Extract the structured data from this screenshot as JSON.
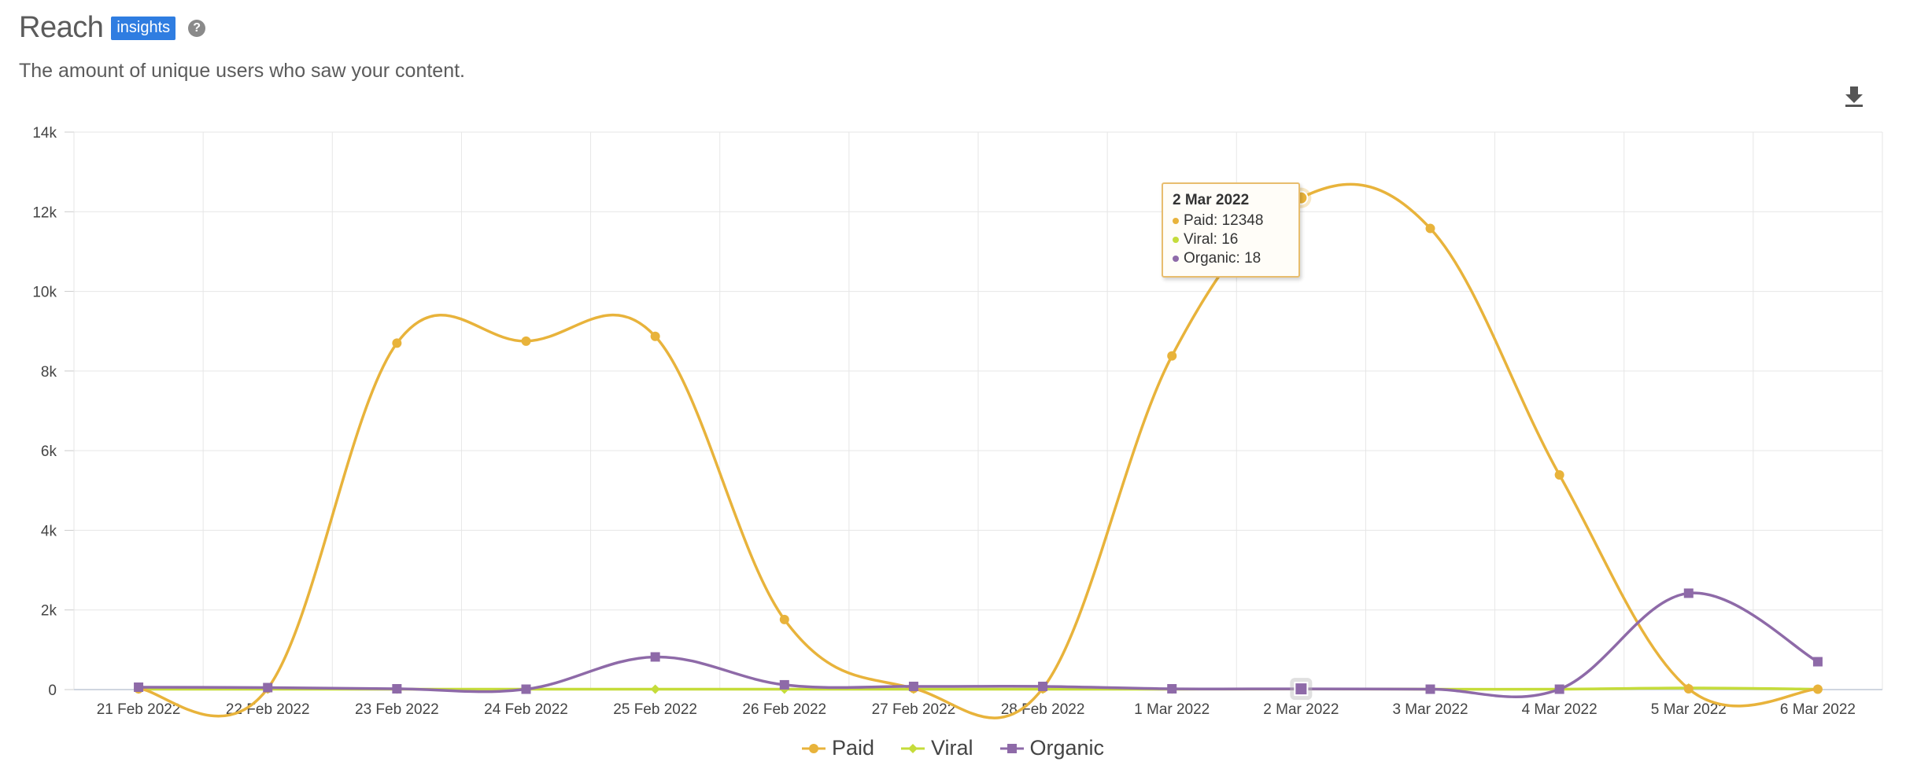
{
  "header": {
    "title": "Reach",
    "badge": "insights",
    "help_icon": "?"
  },
  "subtitle": "The amount of unique users who saw your content.",
  "toolbar": {
    "download_icon": "download-icon"
  },
  "colors": {
    "paid": "#e8b33b",
    "viral": "#c5dc3a",
    "organic": "#8e6aa8",
    "grid": "#e6e6e6"
  },
  "chart_data": {
    "type": "line",
    "categories": [
      "21 Feb 2022",
      "22 Feb 2022",
      "23 Feb 2022",
      "24 Feb 2022",
      "25 Feb 2022",
      "26 Feb 2022",
      "27 Feb 2022",
      "28 Feb 2022",
      "1 Mar 2022",
      "2 Mar 2022",
      "3 Mar 2022",
      "4 Mar 2022",
      "5 Mar 2022",
      "6 Mar 2022"
    ],
    "ylim": [
      0,
      14000
    ],
    "yticks": [
      "0",
      "2k",
      "4k",
      "6k",
      "8k",
      "10k",
      "12k",
      "14k"
    ],
    "grid": true,
    "legend_position": "bottom-center",
    "series": [
      {
        "name": "Paid",
        "marker": "circle",
        "values": [
          20,
          30,
          8700,
          8750,
          8870,
          1760,
          30,
          30,
          8380,
          12348,
          11580,
          5390,
          20,
          10
        ]
      },
      {
        "name": "Viral",
        "marker": "diamond",
        "values": [
          10,
          10,
          10,
          10,
          10,
          10,
          10,
          10,
          10,
          16,
          10,
          10,
          40,
          10
        ]
      },
      {
        "name": "Organic",
        "marker": "square",
        "values": [
          60,
          50,
          20,
          10,
          820,
          120,
          80,
          80,
          20,
          18,
          10,
          10,
          2420,
          700
        ]
      }
    ],
    "tooltip": {
      "date": "2 Mar 2022",
      "paid": "Paid: 12348",
      "viral": "Viral: 16",
      "organic": "Organic: 18"
    }
  }
}
